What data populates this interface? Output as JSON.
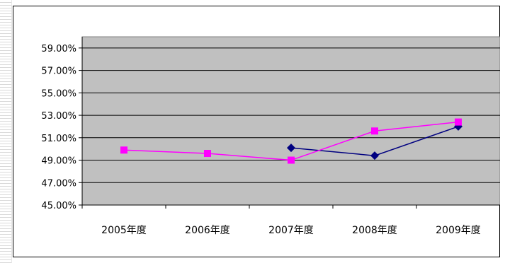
{
  "chart_data": {
    "type": "line",
    "categories": [
      "2005年度",
      "2006年度",
      "2007年度",
      "2008年度",
      "2009年度"
    ],
    "series": [
      {
        "color": "#000080",
        "marker": "diamond",
        "values": [
          null,
          null,
          50.1,
          49.4,
          52.0
        ]
      },
      {
        "color": "#ff00ff",
        "marker": "square",
        "values": [
          49.9,
          49.6,
          49.0,
          51.6,
          52.4
        ]
      }
    ],
    "ytick_labels": [
      "45.00%",
      "47.00%",
      "49.00%",
      "51.00%",
      "53.00%",
      "55.00%",
      "57.00%",
      "59.00%"
    ],
    "ylim": [
      45,
      60
    ],
    "grid": true,
    "plot_background": "#c0c0c0"
  }
}
